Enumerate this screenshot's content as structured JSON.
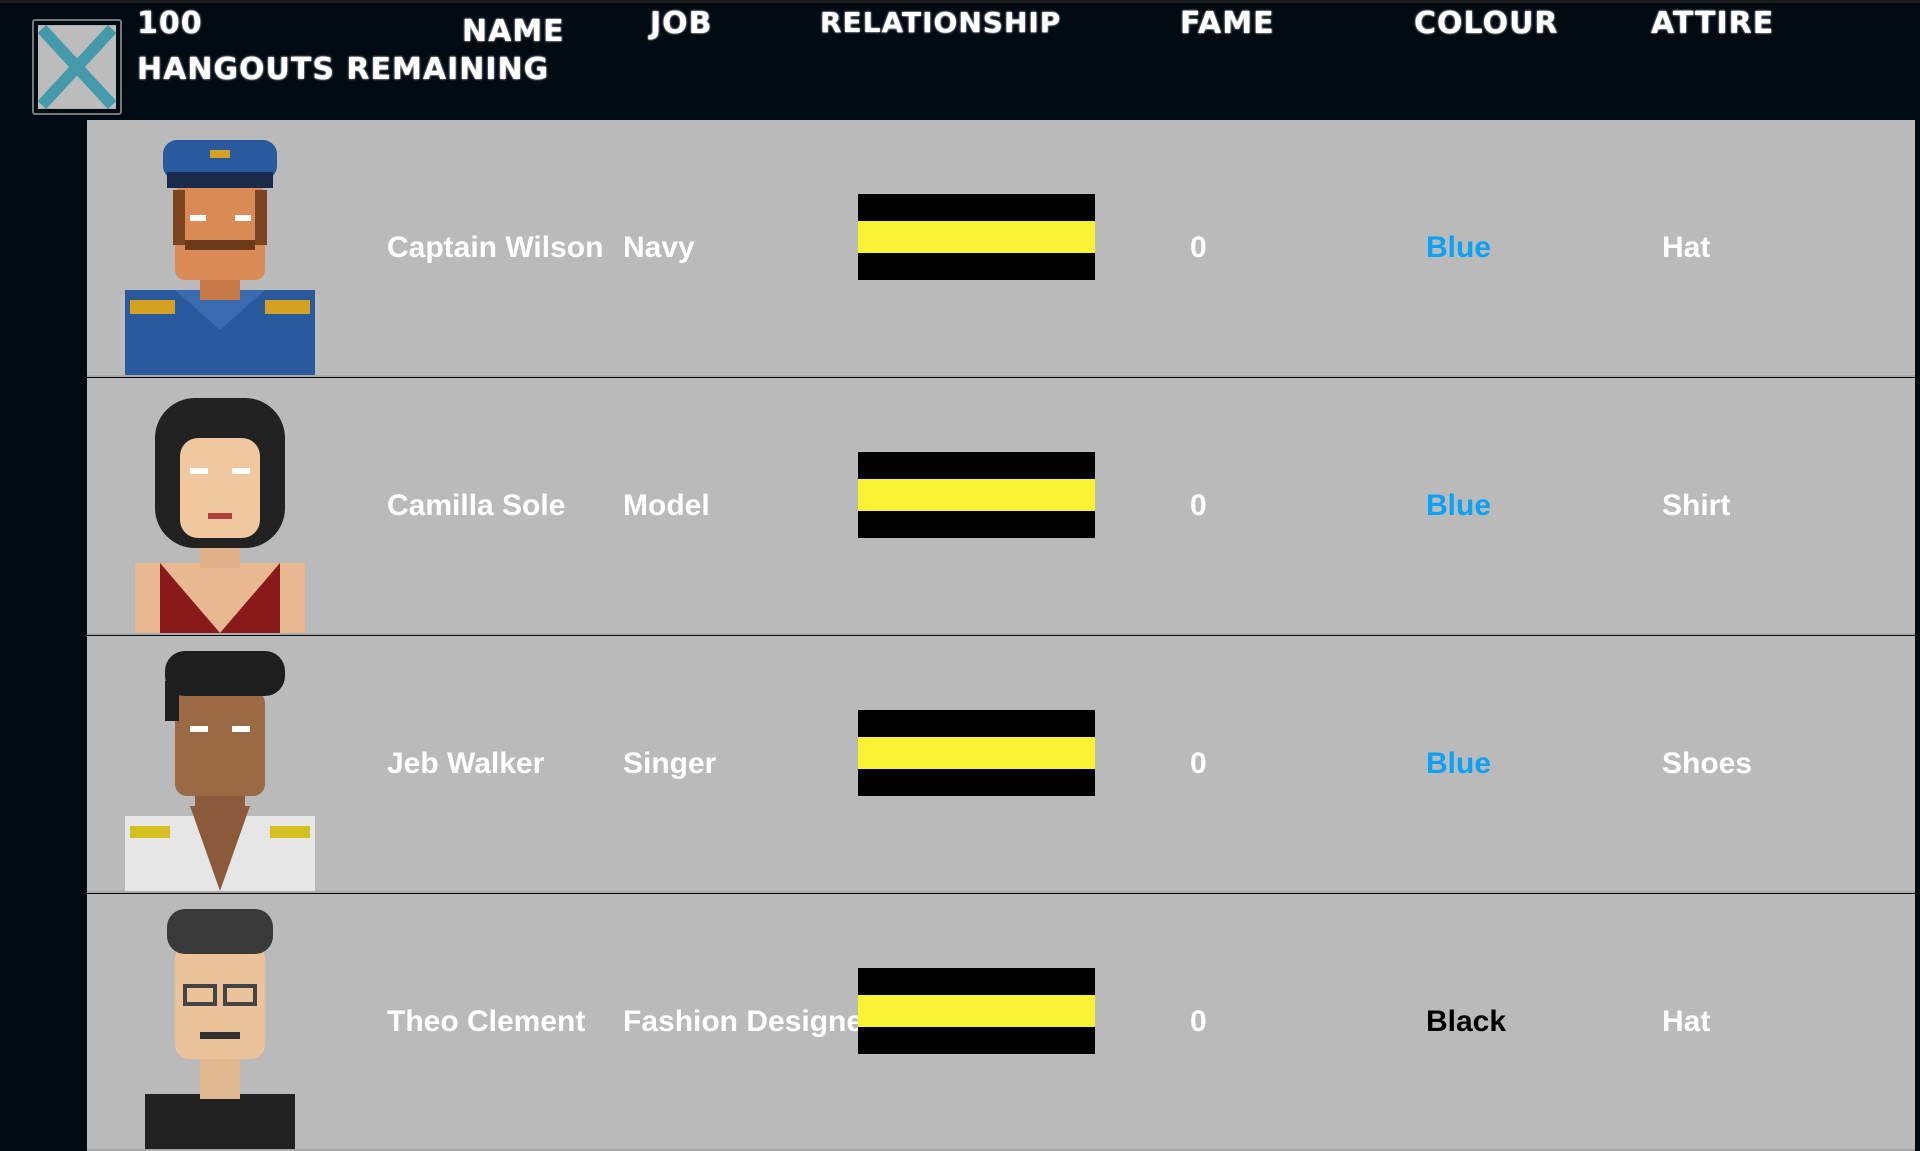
{
  "header": {
    "hangouts_count": "100",
    "hangouts_label": "Hangouts Remaining",
    "close_icon": "close-x-icon",
    "columns": [
      "Name",
      "Job",
      "Relationship",
      "Fame",
      "Colour",
      "Attire"
    ]
  },
  "colors": {
    "blue": "#0aa2f5",
    "black": "#000000",
    "relationship_fill": "#f8f232"
  },
  "people": [
    {
      "name": "Captain Wilson",
      "job": "Navy",
      "relationship": 1.0,
      "fame": "0",
      "colour": "Blue",
      "colour_hex": "#0aa2f5",
      "attire": "Hat",
      "portrait": "navy-captain-portrait"
    },
    {
      "name": "Camilla Sole",
      "job": "Model",
      "relationship": 1.0,
      "fame": "0",
      "colour": "Blue",
      "colour_hex": "#0aa2f5",
      "attire": "Shirt",
      "portrait": "model-woman-portrait"
    },
    {
      "name": "Jeb Walker",
      "job": "Singer",
      "relationship": 1.0,
      "fame": "0",
      "colour": "Blue",
      "colour_hex": "#0aa2f5",
      "attire": "Shoes",
      "portrait": "singer-man-portrait"
    },
    {
      "name": "Theo Clement",
      "job": "Fashion Designer",
      "relationship": 1.0,
      "fame": "0",
      "colour": "Black",
      "colour_hex": "#000000",
      "attire": "Hat",
      "portrait": "designer-man-portrait"
    }
  ]
}
